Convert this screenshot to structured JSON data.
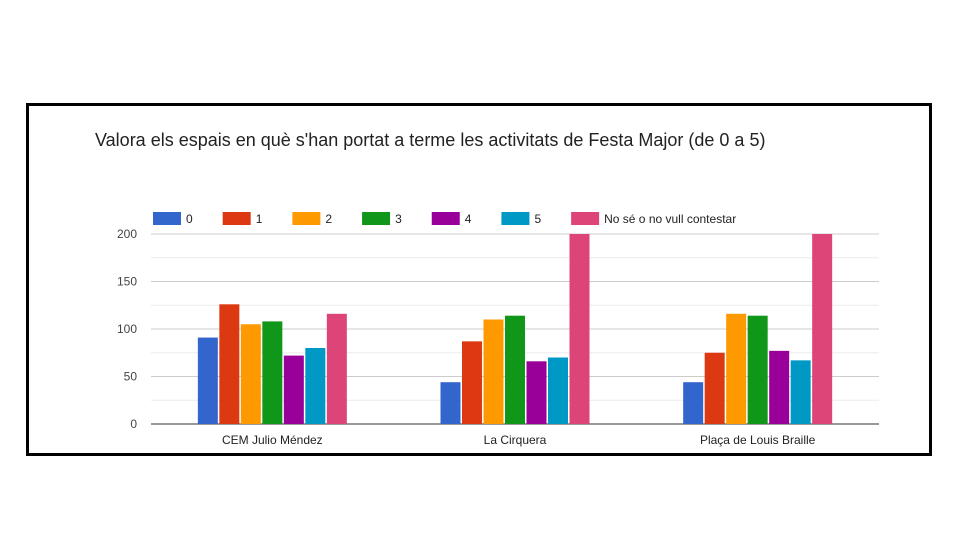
{
  "chart_data": {
    "type": "bar",
    "title": "Valora els espais en què s'han portat a terme les activitats de Festa Major (de 0 a 5)",
    "xlabel": "",
    "ylabel": "",
    "categories": [
      "CEM Julio Méndez",
      "La Cirquera",
      "Plaça de Louis Braille"
    ],
    "series": [
      {
        "name": "0",
        "color": "#3366cc",
        "values": [
          91,
          44,
          44
        ]
      },
      {
        "name": "1",
        "color": "#dc3912",
        "values": [
          126,
          87,
          75
        ]
      },
      {
        "name": "2",
        "color": "#ff9900",
        "values": [
          105,
          110,
          116
        ]
      },
      {
        "name": "3",
        "color": "#109618",
        "values": [
          108,
          114,
          114
        ]
      },
      {
        "name": "4",
        "color": "#990099",
        "values": [
          72,
          66,
          77
        ]
      },
      {
        "name": "5",
        "color": "#0099c6",
        "values": [
          80,
          70,
          67
        ]
      },
      {
        "name": "No sé o no vull contestar",
        "color": "#dd4477",
        "values": [
          116,
          200,
          200
        ]
      }
    ],
    "ylim": [
      0,
      200
    ],
    "yticks": [
      "0",
      "50",
      "100",
      "150",
      "200"
    ],
    "grid": true,
    "legend_position": "top"
  }
}
